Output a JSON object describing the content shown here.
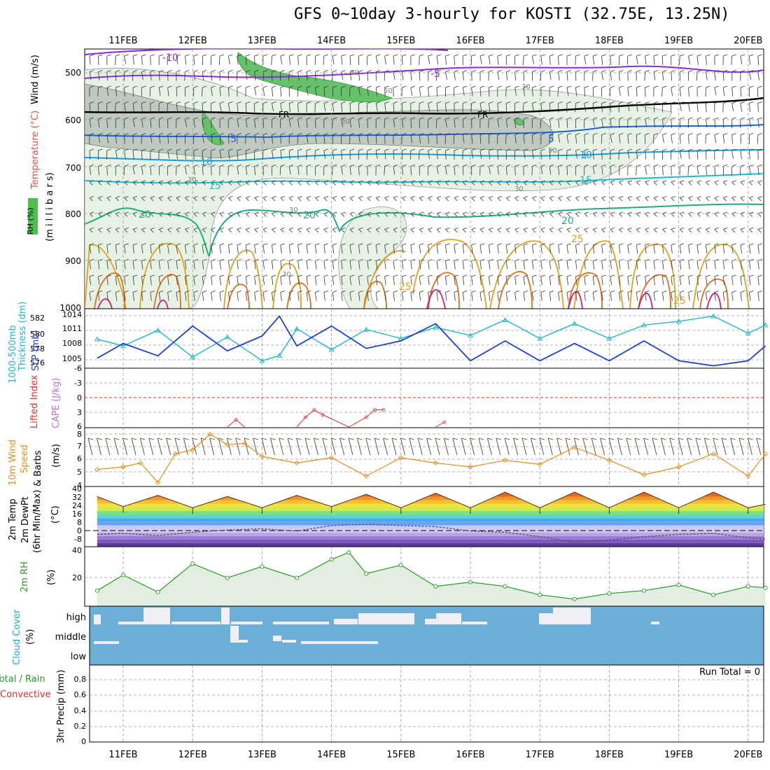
{
  "title": "GFS 0~10day 3-hourly for KOSTI (32.75E, 13.25N)",
  "date_labels": [
    "11FEB",
    "12FEB",
    "13FEB",
    "14FEB",
    "15FEB",
    "16FEB",
    "17FEB",
    "18FEB",
    "19FEB",
    "20FEB"
  ],
  "colors": {
    "rh_fill": "#4fbf4f",
    "temp_axis_label": "#e05050",
    "slp": "#1f3fd0",
    "thickness": "#22b8c8",
    "lifted_index": "#e03030",
    "cape": "#c070d0",
    "wind_speed": "#e09020",
    "rh2m": "#2a9a2a",
    "cloud_blue": "#6baed6",
    "precip_total": "#2a9a2a",
    "precip_convective": "#e03030"
  },
  "panels": {
    "upper": {
      "label_rh": "RH (%)",
      "label_temp": "Temperature (°C)",
      "label_wind": "Wind (m/s)",
      "ylabel": "(m i l l i b a r s)",
      "ticks": [
        "500",
        "600",
        "700",
        "800",
        "900",
        "1000"
      ],
      "contour_labels": [
        "-10",
        "-5",
        "FR",
        "FR",
        "5",
        "5",
        "10",
        "10",
        "15",
        "15",
        "20",
        "20",
        "20",
        "25",
        "25",
        "25",
        "30",
        "30",
        "30",
        "30",
        "30",
        "50",
        "50",
        "30",
        "30"
      ]
    },
    "slp": {
      "label_thick": "1000-500mb",
      "label_thick2": "Thickness (dm)",
      "label_slp": "SLP (mb)",
      "left_ticks": [
        "582",
        "580",
        "578",
        "576"
      ],
      "right_ticks": [
        "1014",
        "1011",
        "1008",
        "1005"
      ]
    },
    "cape": {
      "label_li": "Lifted Index",
      "label_cape": "CAPE (J/kg)",
      "ticks": [
        "-6",
        "-3",
        "0",
        "3",
        "6"
      ]
    },
    "wind10": {
      "label1": "10m Wind",
      "label2": "Speed",
      "label3": "& Barbs",
      "unit": "(m/s)",
      "ticks": [
        "8",
        "7",
        "6",
        "5",
        "4"
      ]
    },
    "temp2m": {
      "label1": "2m Temp",
      "label2": "2m DewPt",
      "label3": "(6hr Min/Max)",
      "unit": "(°C)",
      "ticks": [
        "40",
        "32",
        "24",
        "16",
        "8",
        "0",
        "-8"
      ]
    },
    "rh2m": {
      "label": "2m RH",
      "unit": "(%)",
      "ticks": [
        "40",
        "20"
      ]
    },
    "cloud": {
      "label": "Cloud Cover",
      "unit": "(%)",
      "levels": [
        "high",
        "middle",
        "low"
      ]
    },
    "precip": {
      "label_total": "Total / Rain",
      "label_conv": "Convective",
      "label_unit": "3hr Precip (mm)",
      "run_total": "Run Total = 0",
      "ticks": [
        "0.8",
        "0.6",
        "0.4",
        "0.2",
        "0"
      ]
    }
  },
  "chart_data": [
    {
      "type": "line",
      "name": "SLP (mb)",
      "x": [
        "10FEB15",
        "11FEB00",
        "11FEB12",
        "12FEB00",
        "12FEB12",
        "13FEB00",
        "13FEB06",
        "13FEB12",
        "14FEB00",
        "14FEB12",
        "15FEB00",
        "15FEB12",
        "16FEB00",
        "16FEB12",
        "17FEB00",
        "17FEB12",
        "18FEB00",
        "18FEB12",
        "19FEB00",
        "19FEB12",
        "20FEB00",
        "20FEB06"
      ],
      "values": [
        1005.5,
        1008.5,
        1006,
        1012,
        1007,
        1010,
        1014,
        1008,
        1012,
        1007.5,
        1009,
        1012.5,
        1005,
        1009,
        1005,
        1008.5,
        1005,
        1009,
        1005,
        1004,
        1005,
        1008
      ],
      "ylim": [
        1003.5,
        1015.5
      ]
    },
    {
      "type": "line",
      "name": "1000-500mb Thickness (dm)",
      "x": [
        "10FEB15",
        "11FEB00",
        "11FEB12",
        "12FEB00",
        "12FEB12",
        "13FEB00",
        "13FEB06",
        "13FEB12",
        "14FEB00",
        "14FEB12",
        "15FEB00",
        "15FEB12",
        "16FEB00",
        "16FEB12",
        "17FEB00",
        "17FEB12",
        "18FEB00",
        "18FEB12",
        "19FEB00",
        "19FEB12",
        "20FEB00",
        "20FEB06"
      ],
      "values": [
        578.9,
        578,
        580.1,
        576.5,
        579.2,
        576,
        576.7,
        580.3,
        577.5,
        580.2,
        579,
        580.5,
        579.4,
        581.5,
        579,
        581,
        579,
        580.8,
        581.3,
        582,
        579.7,
        580.8
      ],
      "ylim": [
        575,
        583
      ]
    },
    {
      "type": "line",
      "name": "Lifted Index",
      "x": [
        "12FEB12",
        "12FEB15",
        "12FEB18",
        "13FEB12",
        "13FEB15",
        "13FEB18",
        "13FEB21",
        "14FEB06",
        "14FEB12",
        "14FEB15",
        "14FEB18",
        "15FEB12",
        "15FEB15"
      ],
      "values": [
        6,
        4.5,
        6,
        6,
        4,
        2.5,
        3.5,
        6,
        4,
        2.5,
        2.5,
        6,
        5
      ],
      "ylim": [
        -6,
        6
      ]
    },
    {
      "type": "line",
      "name": "10m Wind Speed (m/s)",
      "x": [
        "10FEB15",
        "11FEB00",
        "11FEB06",
        "11FEB12",
        "11FEB18",
        "12FEB00",
        "12FEB06",
        "12FEB12",
        "12FEB18",
        "13FEB00",
        "13FEB12",
        "14FEB00",
        "14FEB12",
        "15FEB00",
        "15FEB12",
        "16FEB00",
        "16FEB12",
        "17FEB00",
        "17FEB12",
        "18FEB00",
        "18FEB12",
        "19FEB00",
        "19FEB12",
        "20FEB00",
        "20FEB06"
      ],
      "values": [
        5.3,
        5.5,
        5.8,
        4.3,
        6.5,
        6.8,
        8,
        7.2,
        7.3,
        6.3,
        5.8,
        6.2,
        4.8,
        6.2,
        5.8,
        5.5,
        6,
        5.7,
        7,
        6,
        4.9,
        5.5,
        6.5,
        4.8,
        6.5
      ],
      "ylim": [
        4,
        8.5
      ]
    },
    {
      "type": "area",
      "name": "2m Temp (°C)",
      "x": [
        "10FEB15",
        "11FEB00",
        "11FEB12",
        "12FEB00",
        "12FEB12",
        "13FEB00",
        "13FEB12",
        "14FEB00",
        "14FEB12",
        "15FEB00",
        "15FEB12",
        "16FEB00",
        "16FEB12",
        "17FEB00",
        "17FEB12",
        "18FEB00",
        "18FEB12",
        "19FEB00",
        "19FEB12",
        "20FEB00",
        "20FEB06"
      ],
      "values": [
        33,
        24,
        34,
        23,
        33,
        23,
        34,
        24,
        35,
        23,
        36,
        23,
        37,
        23,
        37,
        23,
        37,
        23,
        37,
        23,
        26
      ],
      "ylim": [
        -12,
        42
      ]
    },
    {
      "type": "line",
      "name": "2m DewPt (°C)",
      "x": [
        "10FEB15",
        "11FEB00",
        "11FEB12",
        "12FEB00",
        "12FEB12",
        "13FEB00",
        "13FEB12",
        "14FEB00",
        "14FEB12",
        "15FEB00",
        "15FEB12",
        "16FEB00",
        "16FEB12",
        "17FEB00",
        "17FEB12",
        "18FEB00",
        "18FEB12",
        "19FEB00",
        "19FEB12",
        "20FEB00",
        "20FEB06"
      ],
      "values": [
        -1,
        0,
        -2,
        1,
        3,
        4,
        2,
        7,
        8,
        7,
        6,
        2,
        1,
        -3,
        -8,
        -6,
        -3,
        -1,
        0,
        -4,
        -5
      ],
      "ylim": [
        -12,
        42
      ]
    },
    {
      "type": "area",
      "name": "2m RH (%)",
      "x": [
        "10FEB15",
        "11FEB00",
        "11FEB12",
        "12FEB00",
        "12FEB12",
        "13FEB00",
        "13FEB12",
        "14FEB00",
        "14FEB06",
        "14FEB12",
        "15FEB00",
        "15FEB12",
        "16FEB00",
        "16FEB12",
        "17FEB00",
        "17FEB12",
        "18FEB00",
        "18FEB12",
        "19FEB00",
        "19FEB12",
        "20FEB00",
        "20FEB06"
      ],
      "values": [
        11,
        22,
        10,
        30,
        20,
        28,
        20,
        33,
        38,
        23,
        29,
        14,
        17,
        14,
        8,
        5,
        9,
        11,
        15,
        8,
        14,
        13
      ],
      "ylim": [
        0,
        42
      ]
    },
    {
      "type": "bar",
      "name": "Cloud Cover high (%)",
      "x": [
        "11FEB12",
        "12FEB12",
        "13FEB12",
        "14FEB00",
        "15FEB12",
        "17FEB12"
      ],
      "values": [
        100,
        60,
        60,
        40,
        70,
        100
      ]
    },
    {
      "type": "bar",
      "name": "3hr Precip (mm)",
      "x": [
        "11FEB",
        "20FEB"
      ],
      "values": [
        0,
        0
      ],
      "ylim": [
        0,
        0.95
      ]
    }
  ]
}
